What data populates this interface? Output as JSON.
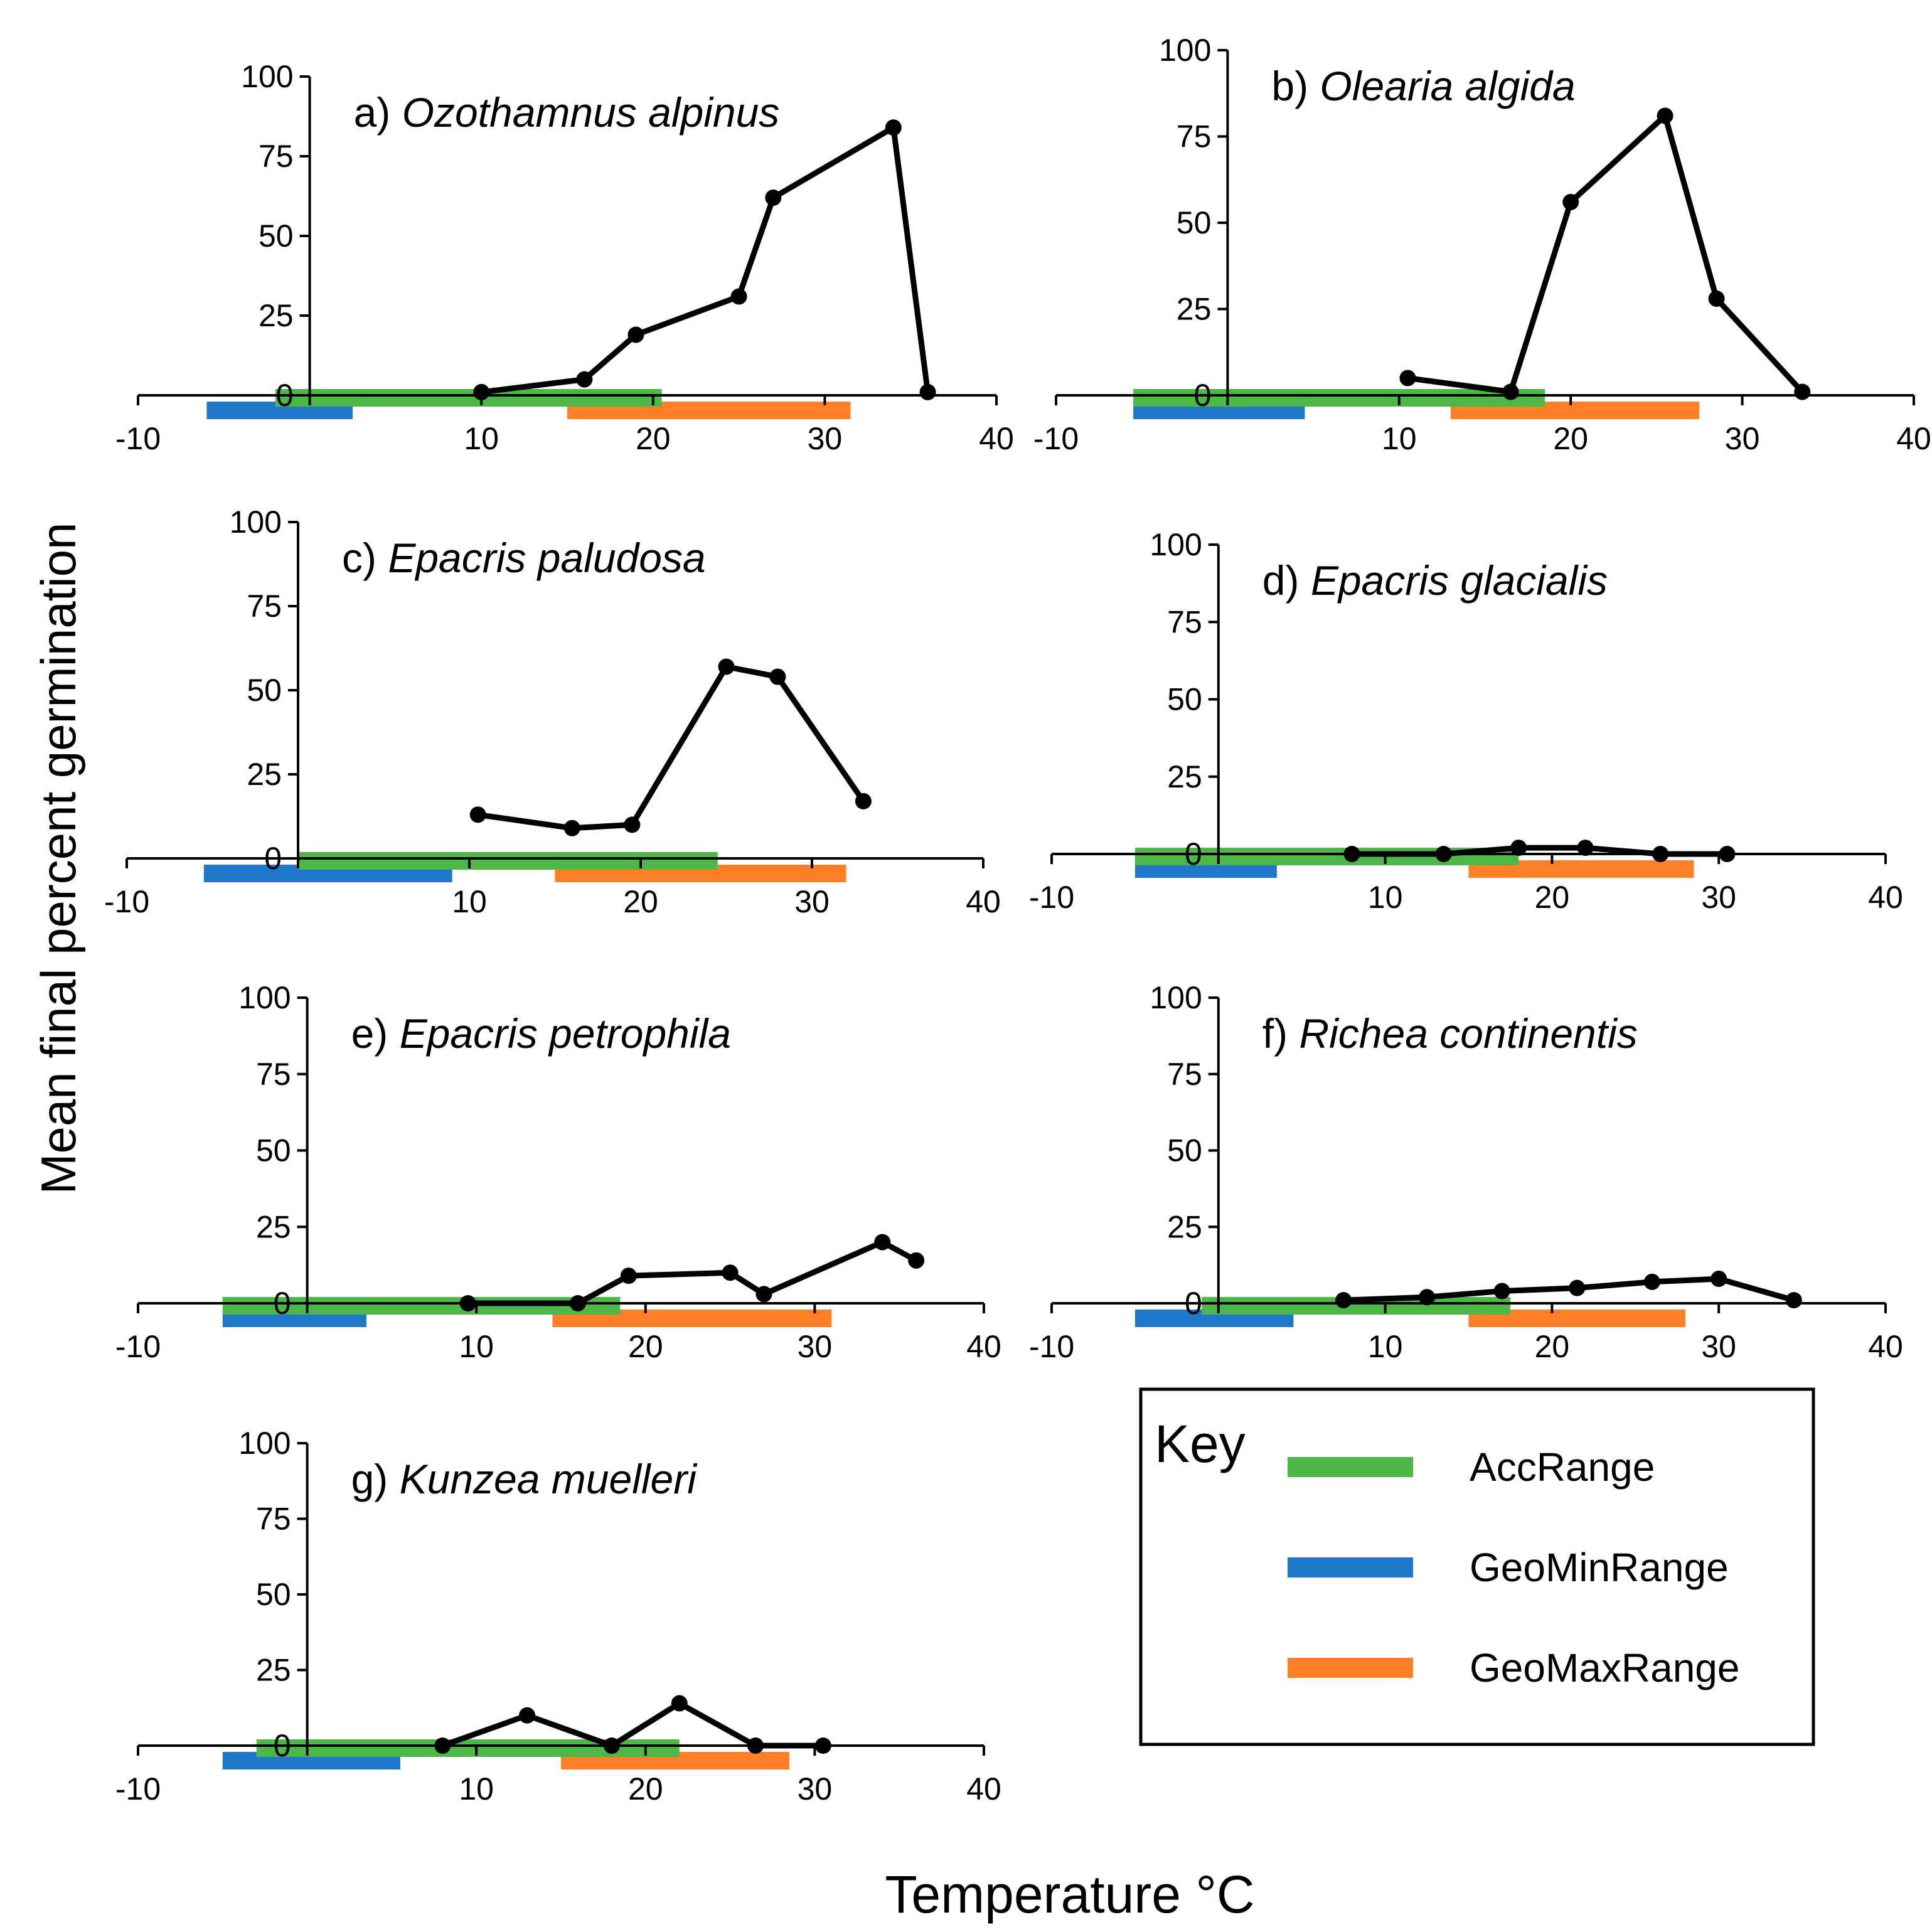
{
  "figure": {
    "ylabel": "Mean final percent germination",
    "xlabel": "Temperature °C"
  },
  "legend": {
    "title": "Key",
    "items": [
      {
        "label": "AccRange",
        "color": "#4db848"
      },
      {
        "label": "GeoMinRange",
        "color": "#1f77c9"
      },
      {
        "label": "GeoMaxRange",
        "color": "#ff8026"
      }
    ]
  },
  "colors": {
    "acc": "#4db848",
    "geomin": "#1f77c9",
    "geomax": "#ff8026",
    "line": "#000000"
  },
  "chart_data": [
    {
      "type": "line",
      "letter": "a)",
      "species": "Ozothamnus alpinus",
      "xlim": [
        -10,
        40
      ],
      "ylim": [
        0,
        100
      ],
      "xticks": [
        "-10",
        "10",
        "20",
        "30",
        "40"
      ],
      "yticks": [
        "0",
        "25",
        "50",
        "75",
        "100"
      ],
      "x": [
        10,
        16,
        19,
        25,
        27,
        34,
        36
      ],
      "y": [
        1,
        5,
        19,
        31,
        62,
        84,
        1
      ],
      "acc_range": [
        -2,
        20.5
      ],
      "geomin_range": [
        -6,
        2.5
      ],
      "geomax_range": [
        15,
        31.5
      ]
    },
    {
      "type": "line",
      "letter": "b)",
      "species": "Olearia algida",
      "xlim": [
        -10,
        40
      ],
      "ylim": [
        0,
        100
      ],
      "xticks": [
        "-10",
        "10",
        "20",
        "30",
        "40"
      ],
      "yticks": [
        "0",
        "25",
        "50",
        "75",
        "100"
      ],
      "x": [
        10.5,
        16.5,
        20,
        25.5,
        28.5,
        33.5
      ],
      "y": [
        5,
        1,
        56,
        81,
        28,
        1
      ],
      "acc_range": [
        -5.5,
        18.5
      ],
      "geomin_range": [
        -5.5,
        4.5
      ],
      "geomax_range": [
        13,
        27.5
      ]
    },
    {
      "type": "line",
      "letter": "c)",
      "species": "Epacris paludosa",
      "xlim": [
        -10,
        40
      ],
      "ylim": [
        0,
        100
      ],
      "xticks": [
        "-10",
        "10",
        "20",
        "30",
        "40"
      ],
      "yticks": [
        "0",
        "25",
        "50",
        "75",
        "100"
      ],
      "x": [
        10.5,
        16,
        19.5,
        25,
        28,
        33
      ],
      "y": [
        13,
        9,
        10,
        57,
        54,
        17
      ],
      "acc_range": [
        0,
        24.5
      ],
      "geomin_range": [
        -5.5,
        9
      ],
      "geomax_range": [
        15,
        32
      ]
    },
    {
      "type": "line",
      "letter": "d)",
      "species": "Epacris glacialis",
      "xlim": [
        -10,
        40
      ],
      "ylim": [
        0,
        100
      ],
      "xticks": [
        "-10",
        "10",
        "20",
        "30",
        "40"
      ],
      "yticks": [
        "0",
        "25",
        "50",
        "75",
        "100"
      ],
      "x": [
        8,
        13.5,
        18,
        22,
        26.5,
        30.5
      ],
      "y": [
        0,
        0,
        2,
        2,
        0,
        0
      ],
      "acc_range": [
        -5,
        18
      ],
      "geomin_range": [
        -5,
        3.5
      ],
      "geomax_range": [
        15,
        28.5
      ]
    },
    {
      "type": "line",
      "letter": "e)",
      "species": "Epacris petrophila",
      "xlim": [
        -10,
        40
      ],
      "ylim": [
        0,
        100
      ],
      "xticks": [
        "-10",
        "10",
        "20",
        "30",
        "40"
      ],
      "yticks": [
        "0",
        "25",
        "50",
        "75",
        "100"
      ],
      "x": [
        9.5,
        16,
        19,
        25,
        27,
        34,
        36
      ],
      "y": [
        0,
        0,
        9,
        10,
        3,
        20,
        14
      ],
      "acc_range": [
        -5,
        18.5
      ],
      "geomin_range": [
        -5,
        3.5
      ],
      "geomax_range": [
        14.5,
        31
      ]
    },
    {
      "type": "line",
      "letter": "f)",
      "species": "Richea continentis",
      "xlim": [
        -10,
        40
      ],
      "ylim": [
        0,
        100
      ],
      "xticks": [
        "-10",
        "10",
        "20",
        "30",
        "40"
      ],
      "yticks": [
        "0",
        "25",
        "50",
        "75",
        "100"
      ],
      "x": [
        7.5,
        12.5,
        17,
        21.5,
        26,
        30,
        34.5
      ],
      "y": [
        1,
        2,
        4,
        5,
        7,
        8,
        1
      ],
      "acc_range": [
        -1,
        17.5
      ],
      "geomin_range": [
        -5,
        4.5
      ],
      "geomax_range": [
        15,
        28
      ]
    },
    {
      "type": "line",
      "letter": "g)",
      "species": "Kunzea muelleri",
      "xlim": [
        -10,
        40
      ],
      "ylim": [
        0,
        100
      ],
      "xticks": [
        "-10",
        "10",
        "20",
        "30",
        "40"
      ],
      "yticks": [
        "0",
        "25",
        "50",
        "75",
        "100"
      ],
      "x": [
        8,
        13,
        18,
        22,
        26.5,
        30.5
      ],
      "y": [
        0,
        10,
        0,
        14,
        0,
        0
      ],
      "acc_range": [
        -3,
        22
      ],
      "geomin_range": [
        -5,
        5.5
      ],
      "geomax_range": [
        15,
        28.5
      ]
    }
  ]
}
